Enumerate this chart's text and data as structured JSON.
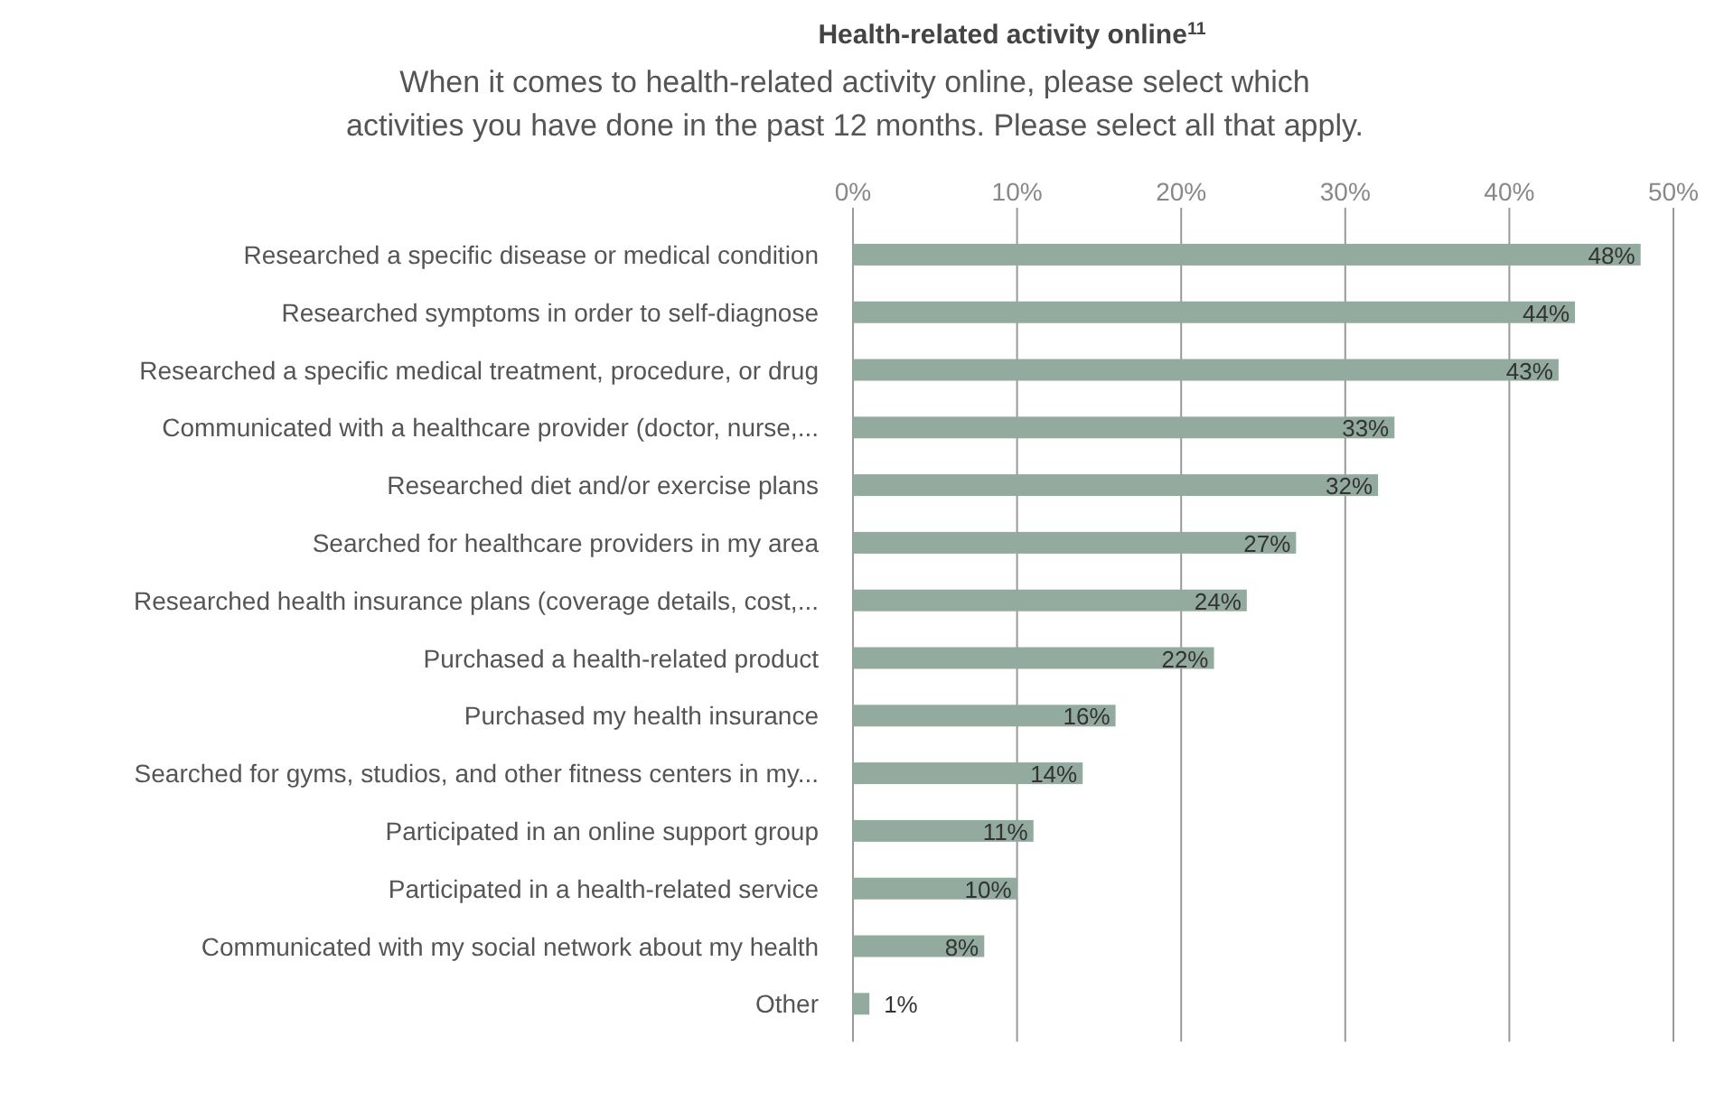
{
  "chart_data": {
    "type": "bar",
    "orientation": "horizontal",
    "title": "Health-related activity online$^{11}$",
    "subtitle": "When it comes to health-related activity online, please select which\nactivities you have done in the past 12 months. Please select all that apply.",
    "categories": [
      "Researched a specific disease or medical condition",
      "Researched symptoms in order to self-diagnose",
      "Researched a specific medical treatment, procedure, or drug",
      "Communicated with a healthcare provider (doctor, nurse,...",
      "Researched diet and/or exercise plans",
      "Searched for healthcare providers in my area",
      "Researched health insurance plans (coverage details, cost,...",
      "Purchased a health-related product",
      "Purchased my health insurance",
      "Searched for gyms, studios, and other fitness centers in my...",
      "Participated in an online support group",
      "Participated in a health-related service",
      "Communicated with my social network about my health",
      "Other"
    ],
    "values": [
      48,
      44,
      43,
      33,
      32,
      27,
      24,
      22,
      16,
      14,
      11,
      10,
      8,
      1
    ],
    "value_labels": [
      "48%",
      "44%",
      "43%",
      "33%",
      "32%",
      "27%",
      "24%",
      "22%",
      "16%",
      "14%",
      "11%",
      "10%",
      "8%",
      "1%"
    ],
    "color": "#93aa9f",
    "xlim": [
      0,
      50
    ],
    "xticks": [
      {
        "value": 0,
        "label": "0%"
      },
      {
        "value": 10,
        "label": "10%"
      },
      {
        "value": 20,
        "label": "20%"
      },
      {
        "value": 30,
        "label": "30%"
      },
      {
        "value": 40,
        "label": "40%"
      },
      {
        "value": 50,
        "label": "50%"
      }
    ],
    "grid": "x"
  }
}
